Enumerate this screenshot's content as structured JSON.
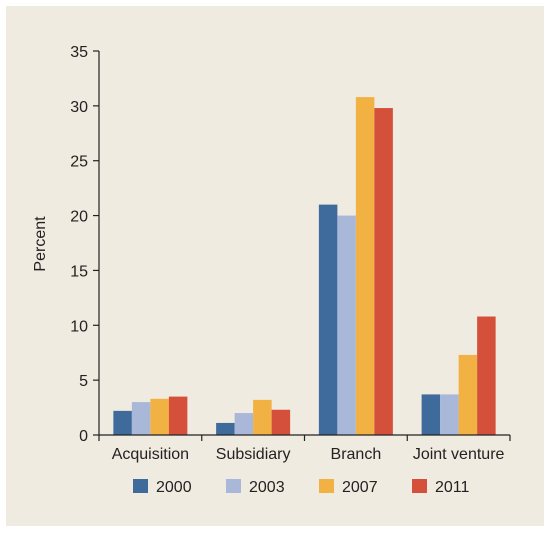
{
  "colors": {
    "background": "#f0ebe0",
    "axis": "#222222"
  },
  "chart_data": {
    "type": "bar",
    "title": "",
    "xlabel": "",
    "ylabel": "Percent",
    "ylim": [
      0,
      35
    ],
    "yticks": [
      0,
      5,
      10,
      15,
      20,
      25,
      30,
      35
    ],
    "grid": false,
    "legend_position": "bottom",
    "categories": [
      "Acquisition",
      "Subsidiary",
      "Branch",
      "Joint venture"
    ],
    "series": [
      {
        "name": "2000",
        "color": "#3e6b9b",
        "values": [
          2.2,
          1.1,
          21.0,
          3.7
        ]
      },
      {
        "name": "2003",
        "color": "#a9b8d8",
        "values": [
          3.0,
          2.0,
          20.0,
          3.7
        ]
      },
      {
        "name": "2007",
        "color": "#f2b143",
        "values": [
          3.3,
          3.2,
          30.8,
          7.3
        ]
      },
      {
        "name": "2011",
        "color": "#d4503a",
        "values": [
          3.5,
          2.3,
          29.8,
          10.8
        ]
      }
    ]
  }
}
